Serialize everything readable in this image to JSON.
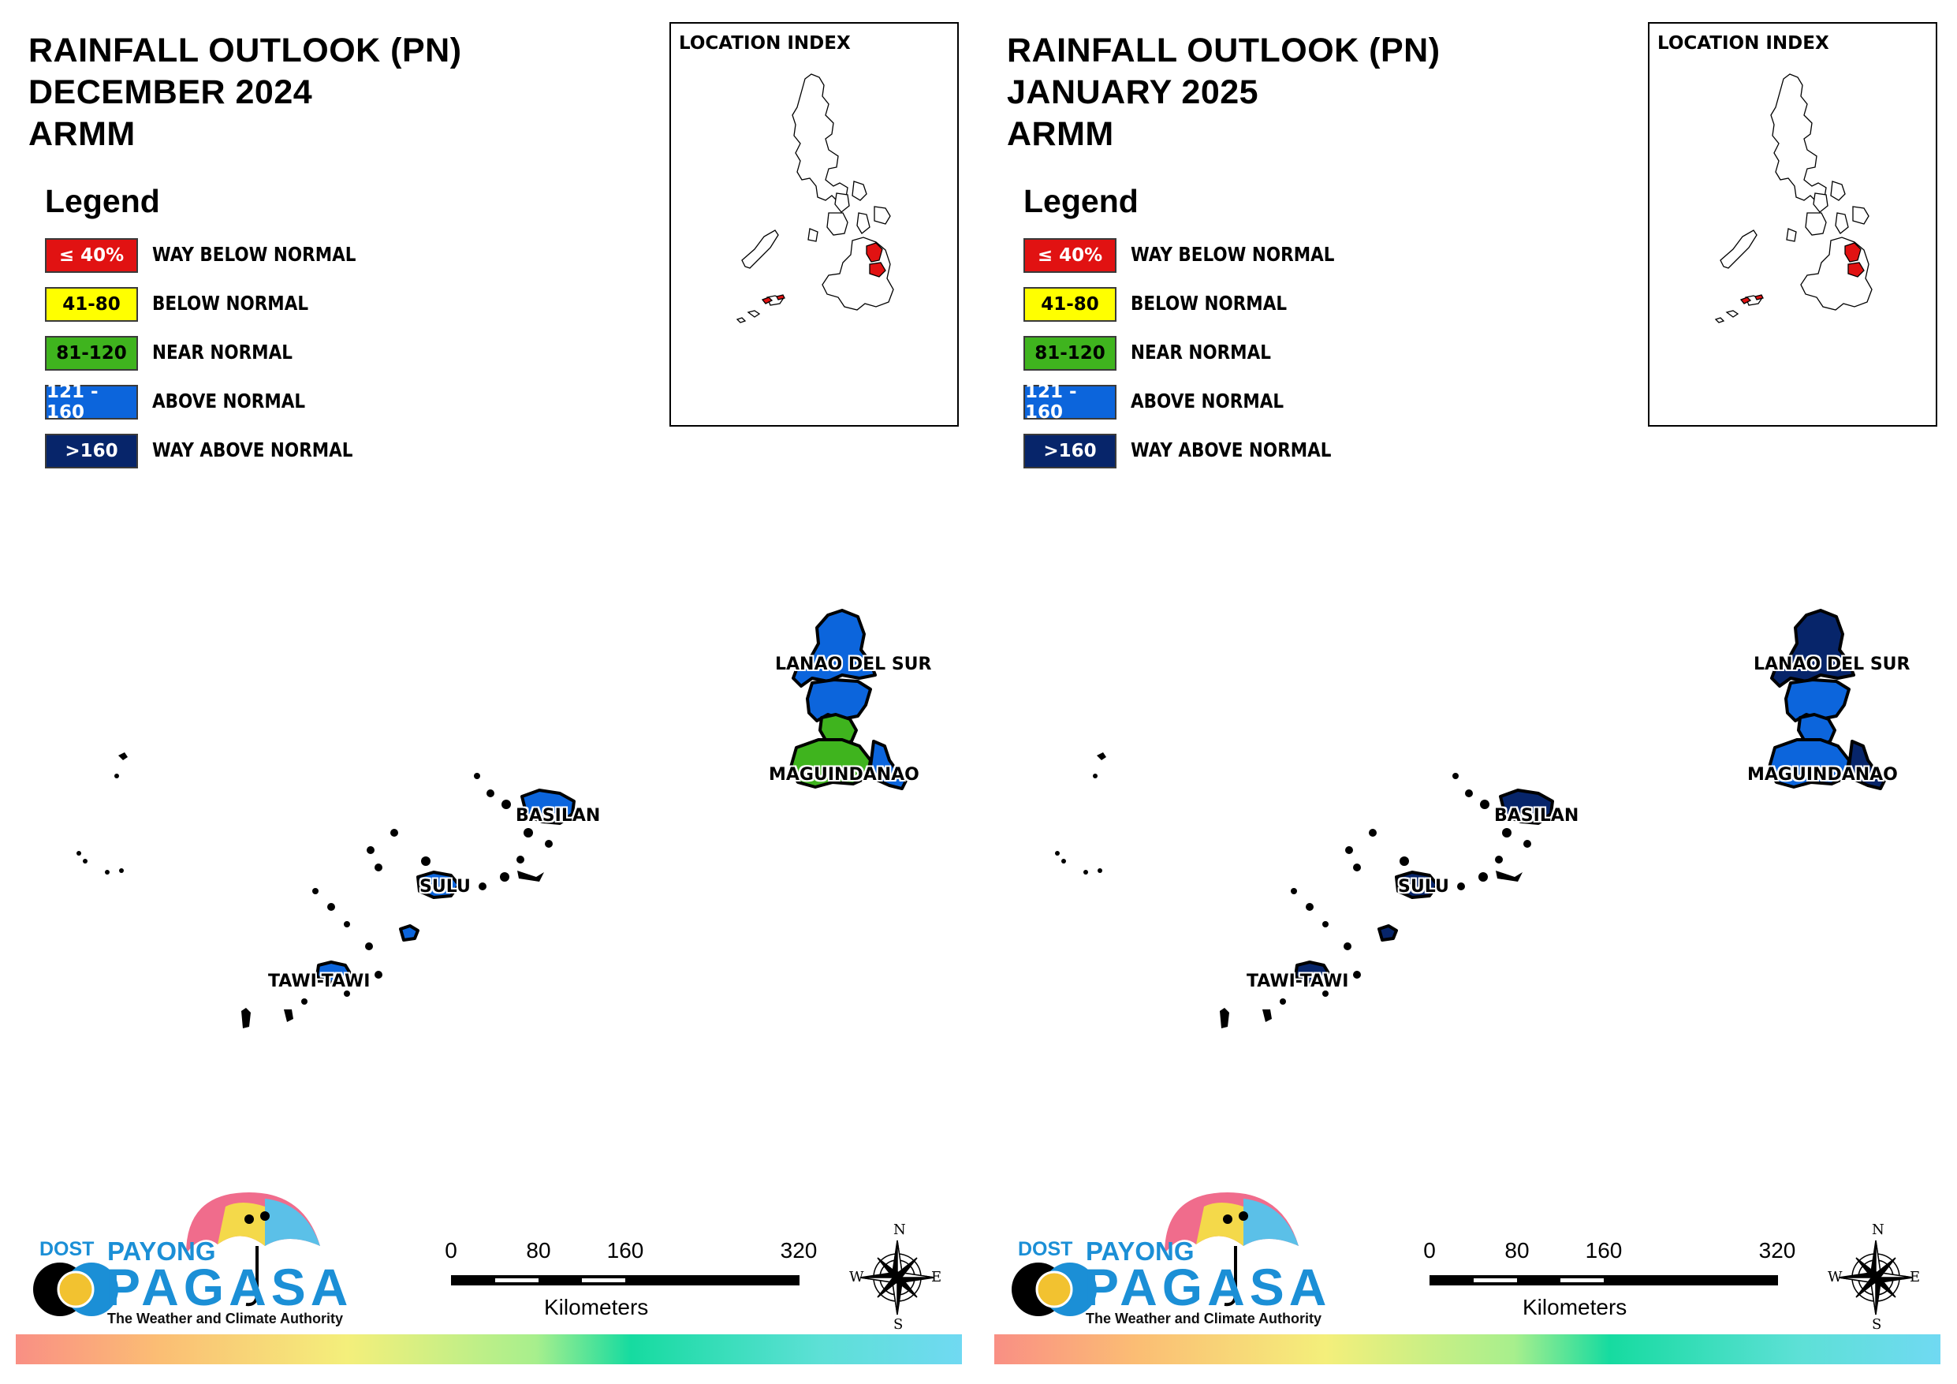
{
  "colors": {
    "way_below": "#e11212",
    "below": "#ffff00",
    "near": "#3fb41e",
    "above": "#0c65dc",
    "way_above": "#07256a"
  },
  "legend": {
    "title": "Legend",
    "items": [
      {
        "range": "≤ 40%",
        "label": "WAY BELOW NORMAL",
        "class": "way_below",
        "text_color": "#ffffff"
      },
      {
        "range": "41-80",
        "label": "BELOW NORMAL",
        "class": "below",
        "text_color": "#000000"
      },
      {
        "range": "81-120",
        "label": "NEAR NORMAL",
        "class": "near",
        "text_color": "#000000"
      },
      {
        "range": "121 - 160",
        "label": "ABOVE NORMAL",
        "class": "above",
        "text_color": "#ffffff"
      },
      {
        "range": ">160",
        "label": "WAY ABOVE NORMAL",
        "class": "way_above",
        "text_color": "#ffffff"
      }
    ]
  },
  "location_index": {
    "label": "LOCATION INDEX"
  },
  "provinces": {
    "lanao": "LANAO DEL SUR",
    "maguindanao": "MAGUINDANAO",
    "basilan": "BASILAN",
    "sulu": "SULU",
    "tawi": "TAWI-TAWI"
  },
  "scalebar": {
    "ticks": [
      "0",
      "80",
      "160",
      "320"
    ],
    "unit": "Kilometers"
  },
  "compass": {
    "n": "N",
    "s": "S",
    "e": "E",
    "w": "W"
  },
  "logo": {
    "dost": "DOST",
    "payong": "PAYONG",
    "pagasa": "PAGASA",
    "tagline": "The Weather and Climate Authority"
  },
  "maps": [
    {
      "title_line1": "RAINFALL OUTLOOK (PN)",
      "title_line2": "DECEMBER 2024",
      "title_line3": "ARMM",
      "fills": {
        "lanao_north": "above",
        "lanao_south": "above",
        "lanao_mid": "near",
        "maguindanao": "near",
        "maguindanao_east": "above",
        "basilan": "above",
        "sulu": "above",
        "tawi": "above"
      }
    },
    {
      "title_line1": "RAINFALL OUTLOOK (PN)",
      "title_line2": "JANUARY 2025",
      "title_line3": "ARMM",
      "fills": {
        "lanao_north": "way_above",
        "lanao_south": "above",
        "lanao_mid": "above",
        "maguindanao": "above",
        "maguindanao_east": "way_above",
        "basilan": "way_above",
        "sulu": "way_above",
        "tawi": "way_above"
      }
    }
  ]
}
